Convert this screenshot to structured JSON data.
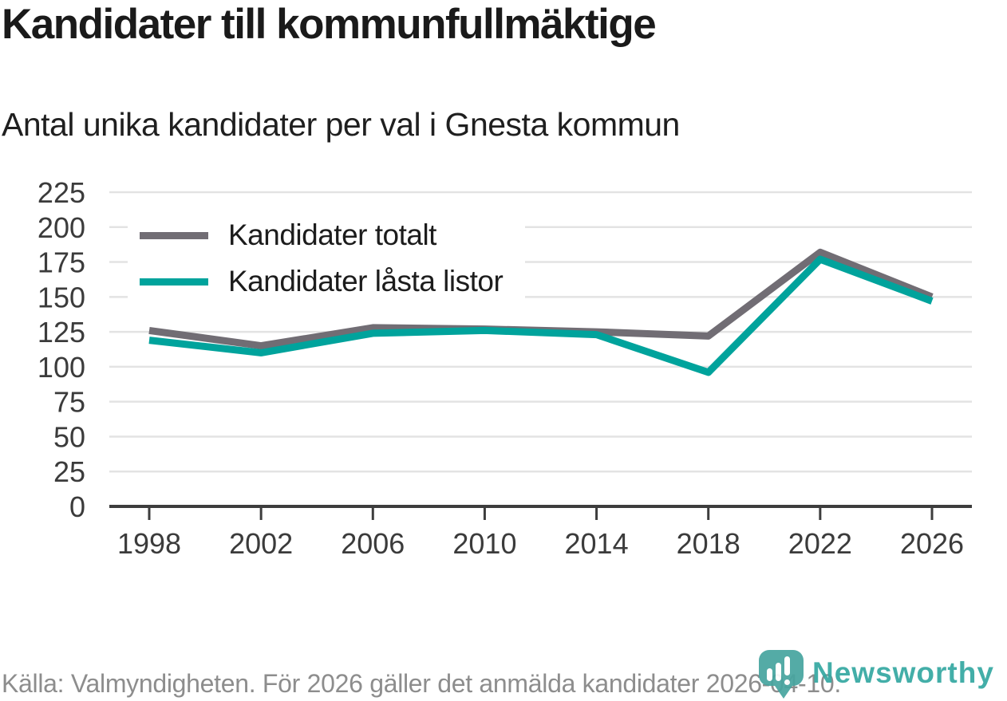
{
  "header": {
    "title": "Kandidater till kommunfullmäktige",
    "subtitle": "Antal unika kandidater per val i Gnesta kommun"
  },
  "chart_data": {
    "type": "line",
    "title": "Kandidater till kommunfullmäktige",
    "subtitle": "Antal unika kandidater per val i Gnesta kommun",
    "x": [
      1998,
      2002,
      2006,
      2010,
      2014,
      2018,
      2022,
      2026
    ],
    "xtick_labels": [
      "1998",
      "2002",
      "2006",
      "2010",
      "2014",
      "2018",
      "2022",
      "2026"
    ],
    "yticks": [
      0,
      25,
      50,
      75,
      100,
      125,
      150,
      175,
      200,
      225
    ],
    "ytick_labels": [
      "0",
      "25",
      "50",
      "75",
      "100",
      "125",
      "150",
      "175",
      "200",
      "225"
    ],
    "ylim": [
      0,
      225
    ],
    "grid": "horizontal",
    "legend_position": "upper-left",
    "series": [
      {
        "name": "Kandidater totalt",
        "color": "#716d74",
        "values": [
          126,
          115,
          128,
          127,
          125,
          122,
          182,
          150
        ]
      },
      {
        "name": "Kandidater låsta listor",
        "color": "#00a39c",
        "values": [
          119,
          110,
          124,
          126,
          123,
          96,
          177,
          147
        ]
      }
    ]
  },
  "footer": {
    "source": "Källa: Valmyndigheten. För 2026 gäller det anmälda kandidater 2026-04-10."
  },
  "branding": {
    "name": "Newsworthy",
    "icon_color": "#48a5a0",
    "text_color": "#35a8a2"
  },
  "colors": {
    "accent_teal": "#00a39c",
    "line_gray": "#716d74",
    "grid": "#e3e3e3",
    "axis": "#3d3d3d",
    "axis_label": "#3b3b3b"
  }
}
